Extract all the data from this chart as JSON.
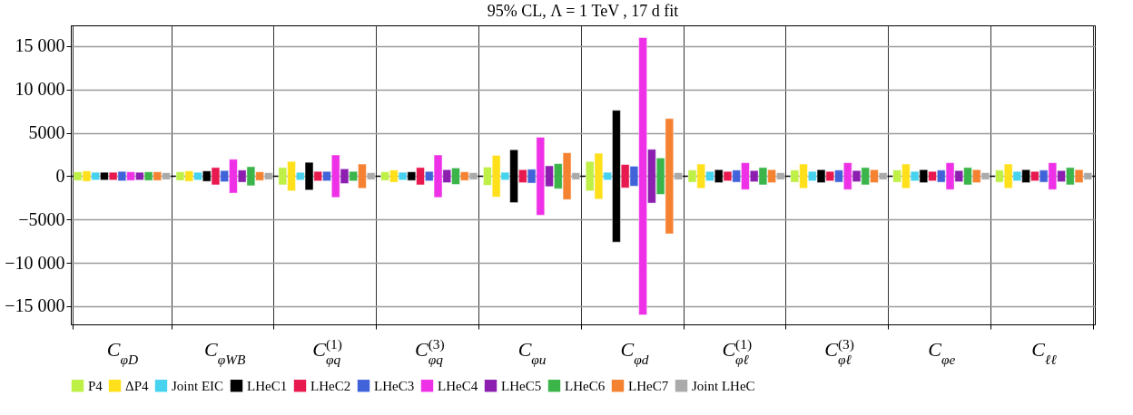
{
  "chart_data": {
    "type": "bar",
    "title": "95% CL, Λ = 1 TeV , 17 d fit",
    "categories": [
      "C$_{φD}$",
      "C$_{φWB}$",
      "C$_{φq}$$^{(1)}$",
      "C$_{φq}$$^{(3)}$",
      "C$_{φu}$",
      "C$_{φd}$",
      "C$_{φℓ}$$^{(1)}$",
      "C$_{φℓ}$$^{(3)}$",
      "C$_{φe}$",
      "C$_{ℓℓ}$"
    ],
    "series": [
      {
        "name": "P4",
        "color": "#bef045",
        "base": [
          -500,
          -500,
          -1000,
          -500,
          -1050,
          -1700,
          -700,
          -700,
          -700,
          -700
        ],
        "values": [
          1000,
          1000,
          2000,
          1000,
          2100,
          3400,
          1400,
          1400,
          1400,
          1400
        ]
      },
      {
        "name": "ΔP4",
        "color": "#ffe01a",
        "base": [
          -600,
          -600,
          -1700,
          -700,
          -2400,
          -2650,
          -1400,
          -1400,
          -1400,
          -1400
        ],
        "values": [
          1200,
          1200,
          3400,
          1400,
          4800,
          5300,
          2800,
          2800,
          2800,
          2800
        ]
      },
      {
        "name": "Joint EIC",
        "color": "#45d3f0",
        "base": [
          -450,
          -450,
          -450,
          -450,
          -450,
          -450,
          -550,
          -550,
          -550,
          -550
        ],
        "values": [
          900,
          900,
          900,
          900,
          900,
          900,
          1100,
          1100,
          1100,
          1100
        ]
      },
      {
        "name": "LHeC1",
        "color": "#000000",
        "base": [
          -450,
          -600,
          -1600,
          -500,
          -3050,
          -7600,
          -750,
          -750,
          -750,
          -750
        ],
        "values": [
          900,
          1200,
          3200,
          1000,
          6100,
          15200,
          1500,
          1500,
          1500,
          1500
        ]
      },
      {
        "name": "LHeC2",
        "color": "#e8194f",
        "base": [
          -450,
          -1000,
          -550,
          -1000,
          -750,
          -1350,
          -550,
          -550,
          -550,
          -550
        ],
        "values": [
          900,
          2000,
          1100,
          2000,
          1500,
          2700,
          1100,
          1100,
          1100,
          1100
        ]
      },
      {
        "name": "LHeC3",
        "color": "#4163d9",
        "base": [
          -550,
          -650,
          -550,
          -550,
          -800,
          -1150,
          -700,
          -700,
          -700,
          -700
        ],
        "values": [
          1100,
          1300,
          1100,
          1100,
          1600,
          2300,
          1400,
          1400,
          1400,
          1400
        ]
      },
      {
        "name": "LHeC4",
        "color": "#ee30e6",
        "base": [
          -500,
          -1950,
          -2450,
          -2450,
          -4500,
          -16000,
          -1550,
          -1550,
          -1550,
          -1550
        ],
        "values": [
          1000,
          3900,
          4900,
          4900,
          9000,
          32000,
          3100,
          3100,
          3100,
          3100
        ]
      },
      {
        "name": "LHeC5",
        "color": "#8c1eb0",
        "base": [
          -450,
          -700,
          -850,
          -750,
          -1200,
          -3100,
          -650,
          -650,
          -650,
          -650
        ],
        "values": [
          900,
          1400,
          1700,
          1500,
          2400,
          6200,
          1300,
          1300,
          1300,
          1300
        ]
      },
      {
        "name": "LHeC6",
        "color": "#3bb54a",
        "base": [
          -500,
          -1100,
          -550,
          -950,
          -1450,
          -2100,
          -1000,
          -1000,
          -1000,
          -1000
        ],
        "values": [
          1000,
          2200,
          1100,
          1900,
          2900,
          4200,
          2000,
          2000,
          2000,
          2000
        ]
      },
      {
        "name": "LHeC7",
        "color": "#f58231",
        "base": [
          -500,
          -500,
          -1400,
          -500,
          -2700,
          -6650,
          -750,
          -750,
          -750,
          -750
        ],
        "values": [
          1000,
          1000,
          2800,
          1000,
          5400,
          13300,
          1500,
          1500,
          1500,
          1500
        ]
      },
      {
        "name": "Joint LHeC",
        "color": "#aaaaaa",
        "base": [
          -400,
          -400,
          -400,
          -400,
          -400,
          -400,
          -400,
          -400,
          -400,
          -400
        ],
        "values": [
          800,
          800,
          800,
          800,
          800,
          800,
          800,
          800,
          800,
          800
        ]
      }
    ],
    "ylim": [
      -17100,
      17400
    ],
    "yticks": [
      {
        "value": -15000,
        "label": "−15 000"
      },
      {
        "value": -10000,
        "label": "−10 000"
      },
      {
        "value": -5000,
        "label": "−5000"
      },
      0,
      5000,
      {
        "value": 10000,
        "label": "10 000"
      },
      {
        "value": 15000,
        "label": "15 000"
      }
    ],
    "grid": true,
    "legend": "bottom"
  }
}
